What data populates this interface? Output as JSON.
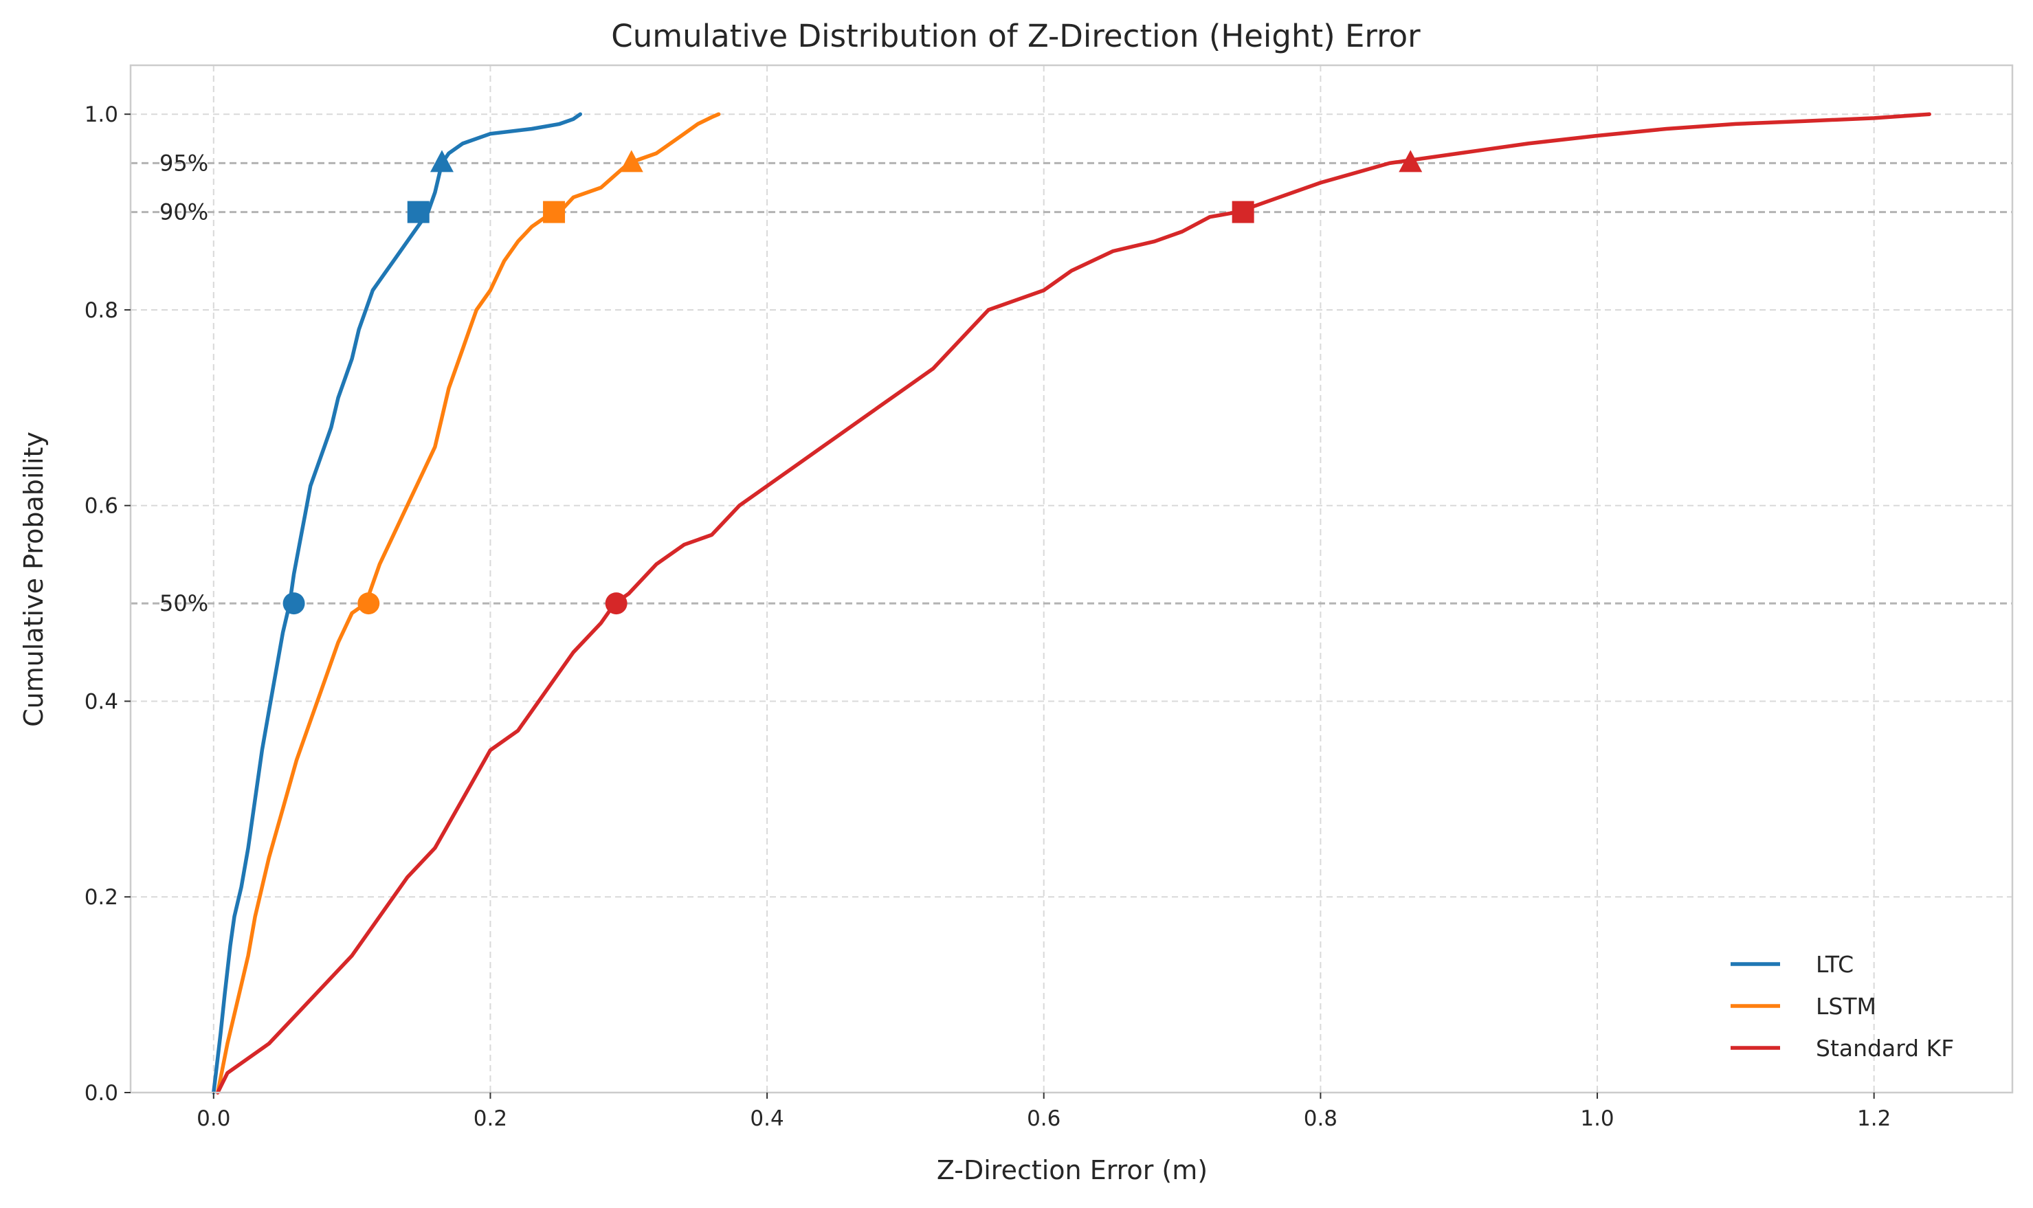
{
  "chart_data": {
    "type": "line",
    "title": "Cumulative Distribution of Z-Direction (Height) Error",
    "xlabel": "Z-Direction Error (m)",
    "ylabel": "Cumulative Probability",
    "xlim": [
      -0.06,
      1.3
    ],
    "ylim": [
      0.0,
      1.05
    ],
    "xticks": [
      0.0,
      0.2,
      0.4,
      0.6,
      0.8,
      1.0,
      1.2
    ],
    "xtick_labels": [
      "0.0",
      "0.2",
      "0.4",
      "0.6",
      "0.8",
      "1.0",
      "1.2"
    ],
    "yticks": [
      0.0,
      0.2,
      0.4,
      0.6,
      0.8,
      1.0
    ],
    "ytick_labels": [
      "0.0",
      "0.2",
      "0.4",
      "0.6",
      "0.8",
      "1.0"
    ],
    "grid": true,
    "legend_position": "bottom-right",
    "reference_lines": [
      {
        "y": 0.95,
        "label": "95%"
      },
      {
        "y": 0.9,
        "label": "90%"
      },
      {
        "y": 0.5,
        "label": "50%"
      }
    ],
    "series": [
      {
        "name": "LTC",
        "color": "#1f77b4",
        "x": [
          0.0,
          0.005,
          0.008,
          0.012,
          0.015,
          0.02,
          0.025,
          0.03,
          0.035,
          0.04,
          0.045,
          0.05,
          0.055,
          0.058,
          0.062,
          0.066,
          0.07,
          0.075,
          0.08,
          0.085,
          0.09,
          0.095,
          0.1,
          0.105,
          0.11,
          0.115,
          0.12,
          0.125,
          0.13,
          0.135,
          0.14,
          0.145,
          0.15,
          0.155,
          0.16,
          0.165,
          0.17,
          0.18,
          0.2,
          0.23,
          0.25,
          0.26,
          0.265
        ],
        "y": [
          0.0,
          0.06,
          0.1,
          0.15,
          0.18,
          0.21,
          0.25,
          0.3,
          0.35,
          0.39,
          0.43,
          0.47,
          0.5,
          0.53,
          0.56,
          0.59,
          0.62,
          0.64,
          0.66,
          0.68,
          0.71,
          0.73,
          0.75,
          0.78,
          0.8,
          0.82,
          0.83,
          0.84,
          0.85,
          0.86,
          0.87,
          0.88,
          0.89,
          0.9,
          0.92,
          0.95,
          0.96,
          0.97,
          0.98,
          0.985,
          0.99,
          0.995,
          1.0
        ]
      },
      {
        "name": "LSTM",
        "color": "#ff7f0e",
        "x": [
          0.003,
          0.01,
          0.015,
          0.02,
          0.025,
          0.03,
          0.04,
          0.05,
          0.06,
          0.07,
          0.08,
          0.09,
          0.1,
          0.11,
          0.12,
          0.13,
          0.14,
          0.15,
          0.16,
          0.165,
          0.17,
          0.175,
          0.18,
          0.185,
          0.19,
          0.2,
          0.21,
          0.22,
          0.23,
          0.24,
          0.25,
          0.26,
          0.28,
          0.3,
          0.32,
          0.34,
          0.35,
          0.36,
          0.365
        ],
        "y": [
          0.0,
          0.05,
          0.08,
          0.11,
          0.14,
          0.18,
          0.24,
          0.29,
          0.34,
          0.38,
          0.42,
          0.46,
          0.49,
          0.5,
          0.54,
          0.57,
          0.6,
          0.63,
          0.66,
          0.69,
          0.72,
          0.74,
          0.76,
          0.78,
          0.8,
          0.82,
          0.85,
          0.87,
          0.885,
          0.895,
          0.9,
          0.915,
          0.925,
          0.95,
          0.96,
          0.98,
          0.99,
          0.997,
          1.0
        ]
      },
      {
        "name": "Standard KF",
        "color": "#d62728",
        "x": [
          0.003,
          0.01,
          0.02,
          0.04,
          0.06,
          0.08,
          0.1,
          0.12,
          0.14,
          0.16,
          0.18,
          0.2,
          0.22,
          0.24,
          0.26,
          0.28,
          0.29,
          0.3,
          0.32,
          0.34,
          0.36,
          0.38,
          0.4,
          0.42,
          0.44,
          0.46,
          0.48,
          0.5,
          0.52,
          0.54,
          0.56,
          0.58,
          0.6,
          0.62,
          0.65,
          0.68,
          0.7,
          0.72,
          0.74,
          0.76,
          0.8,
          0.85,
          0.9,
          0.95,
          1.0,
          1.05,
          1.1,
          1.15,
          1.2,
          1.24
        ],
        "y": [
          0.0,
          0.02,
          0.03,
          0.05,
          0.08,
          0.11,
          0.14,
          0.18,
          0.22,
          0.25,
          0.3,
          0.35,
          0.37,
          0.41,
          0.45,
          0.48,
          0.5,
          0.51,
          0.54,
          0.56,
          0.57,
          0.6,
          0.62,
          0.64,
          0.66,
          0.68,
          0.7,
          0.72,
          0.74,
          0.77,
          0.8,
          0.81,
          0.82,
          0.84,
          0.86,
          0.87,
          0.88,
          0.895,
          0.9,
          0.91,
          0.93,
          0.95,
          0.96,
          0.97,
          0.978,
          0.985,
          0.99,
          0.993,
          0.996,
          1.0
        ]
      }
    ],
    "markers": [
      {
        "series": "LTC",
        "percentile": 50,
        "x": 0.058,
        "y": 0.5,
        "shape": "circle"
      },
      {
        "series": "LTC",
        "percentile": 90,
        "x": 0.148,
        "y": 0.9,
        "shape": "square"
      },
      {
        "series": "LTC",
        "percentile": 95,
        "x": 0.165,
        "y": 0.95,
        "shape": "triangle"
      },
      {
        "series": "LSTM",
        "percentile": 50,
        "x": 0.112,
        "y": 0.5,
        "shape": "circle"
      },
      {
        "series": "LSTM",
        "percentile": 90,
        "x": 0.246,
        "y": 0.9,
        "shape": "square"
      },
      {
        "series": "LSTM",
        "percentile": 95,
        "x": 0.302,
        "y": 0.95,
        "shape": "triangle"
      },
      {
        "series": "Standard KF",
        "percentile": 50,
        "x": 0.291,
        "y": 0.5,
        "shape": "circle"
      },
      {
        "series": "Standard KF",
        "percentile": 90,
        "x": 0.744,
        "y": 0.9,
        "shape": "square"
      },
      {
        "series": "Standard KF",
        "percentile": 95,
        "x": 0.865,
        "y": 0.95,
        "shape": "triangle"
      }
    ]
  }
}
